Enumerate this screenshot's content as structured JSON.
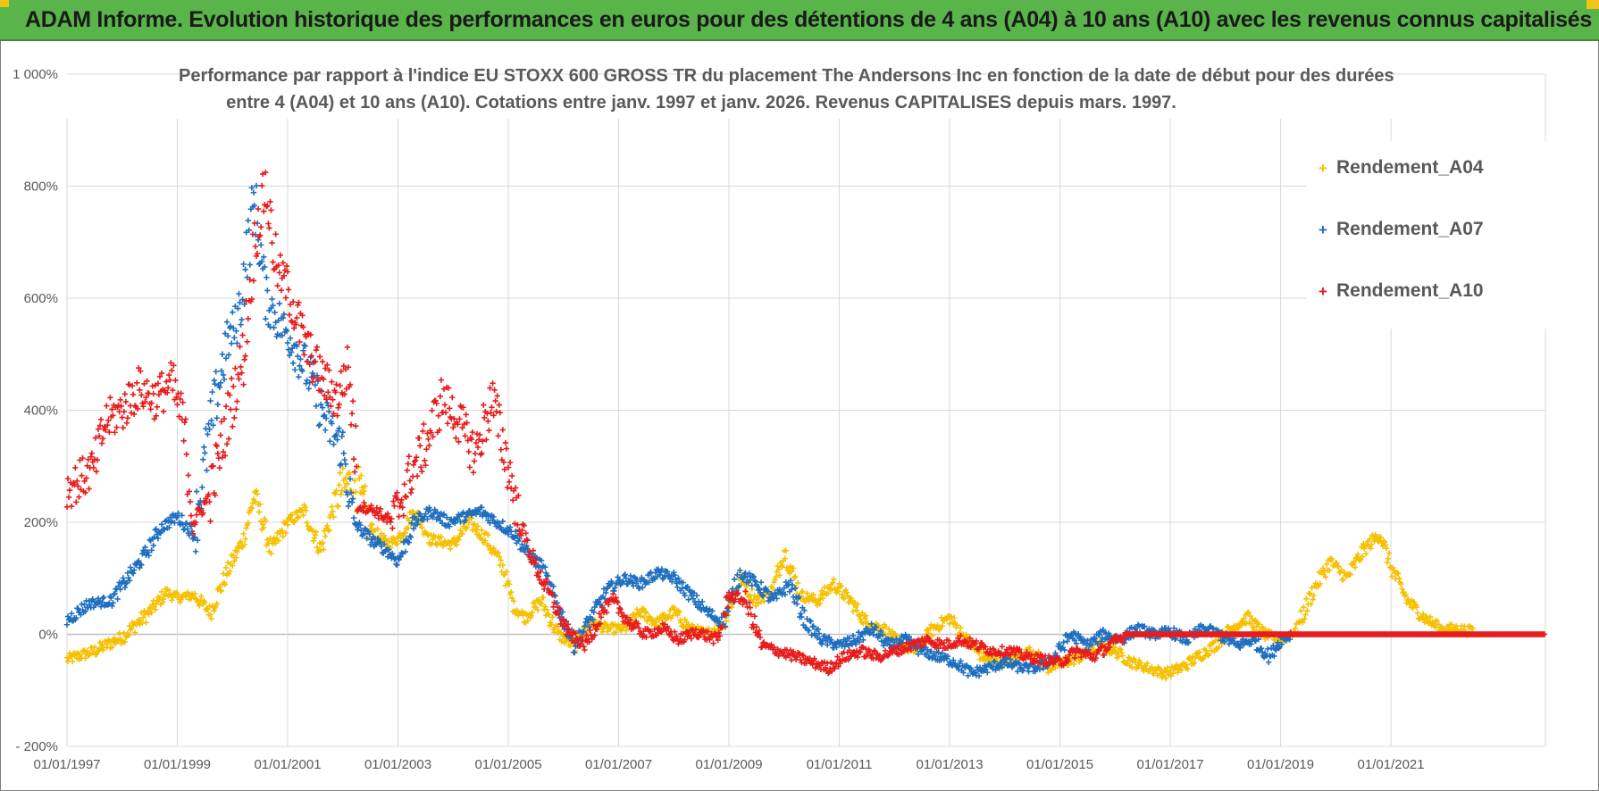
{
  "banner": {
    "title": "ADAM Informe. Evolution historique des performances en euros pour des détentions de 4 ans (A04) à 10 ans (A10) avec les revenus connus capitalisés"
  },
  "colors": {
    "banner_bg": "#59b54a",
    "banner_corner": "#f0c419",
    "A04": "#f5c000",
    "A07": "#1f6fc0",
    "A10": "#e81c1c"
  },
  "chart_data": {
    "type": "scatter",
    "title": "Performance par rapport à l'indice EU STOXX 600 GROSS TR  du placement The Andersons Inc en fonction de la date de début pour des durées entre 4 (A04) et 10 ans (A10). Cotations entre janv. 1997 et janv. 2026. Revenus CAPITALISES depuis mars. 1997.",
    "title_lines": [
      "Performance par rapport à l'indice EU STOXX 600 GROSS TR  du placement The Andersons Inc en fonction de la date de début pour des durées",
      "entre 4 (A04) et 10 ans (A10). Cotations entre janv. 1997 et janv. 2026. Revenus CAPITALISES depuis mars. 1997."
    ],
    "xlabel": "",
    "ylabel": "",
    "x_range": [
      1997.0,
      2023.8
    ],
    "ylim": [
      -200,
      1000
    ],
    "y_ticks": [
      -200,
      0,
      200,
      400,
      600,
      800,
      1000
    ],
    "y_tick_labels": [
      "- 200%",
      "0%",
      "200%",
      "400%",
      "600%",
      "800%",
      "1 000%"
    ],
    "x_ticks": [
      1997,
      1999,
      2001,
      2003,
      2005,
      2007,
      2009,
      2011,
      2013,
      2015,
      2017,
      2019,
      2021
    ],
    "x_tick_labels": [
      "01/01/1997",
      "01/01/1999",
      "01/01/2001",
      "01/01/2003",
      "01/01/2005",
      "01/01/2007",
      "01/01/2009",
      "01/01/2011",
      "01/01/2013",
      "01/01/2015",
      "01/01/2017",
      "01/01/2019",
      "01/01/2021"
    ],
    "grid": true,
    "legend_position": "top-right",
    "marker": "+",
    "series": [
      {
        "name": "Rendement_A04",
        "color": "#f5c000",
        "points": [
          [
            1997.0,
            -45
          ],
          [
            1997.5,
            -30
          ],
          [
            1998.0,
            -5
          ],
          [
            1998.5,
            40
          ],
          [
            1998.8,
            75
          ],
          [
            1999.0,
            65
          ],
          [
            1999.3,
            70
          ],
          [
            1999.6,
            40
          ],
          [
            1999.9,
            110
          ],
          [
            2000.2,
            170
          ],
          [
            2000.4,
            250
          ],
          [
            2000.7,
            150
          ],
          [
            2001.0,
            200
          ],
          [
            2001.3,
            220
          ],
          [
            2001.6,
            150
          ],
          [
            2001.9,
            250
          ],
          [
            2002.2,
            280
          ],
          [
            2002.5,
            190
          ],
          [
            2002.8,
            160
          ],
          [
            2003.0,
            170
          ],
          [
            2003.3,
            220
          ],
          [
            2003.6,
            170
          ],
          [
            2004.0,
            160
          ],
          [
            2004.3,
            200
          ],
          [
            2004.6,
            170
          ],
          [
            2004.9,
            120
          ],
          [
            2005.1,
            50
          ],
          [
            2005.3,
            30
          ],
          [
            2005.6,
            60
          ],
          [
            2005.9,
            0
          ],
          [
            2006.2,
            -20
          ],
          [
            2006.5,
            20
          ],
          [
            2006.8,
            10
          ],
          [
            2007.1,
            10
          ],
          [
            2007.4,
            40
          ],
          [
            2007.7,
            20
          ],
          [
            2008.0,
            40
          ],
          [
            2008.3,
            10
          ],
          [
            2008.6,
            0
          ],
          [
            2008.9,
            20
          ],
          [
            2009.2,
            100
          ],
          [
            2009.5,
            60
          ],
          [
            2009.8,
            80
          ],
          [
            2010.0,
            150
          ],
          [
            2010.3,
            70
          ],
          [
            2010.6,
            60
          ],
          [
            2010.9,
            90
          ],
          [
            2011.2,
            60
          ],
          [
            2011.5,
            20
          ],
          [
            2011.8,
            10
          ],
          [
            2012.1,
            -20
          ],
          [
            2012.4,
            -30
          ],
          [
            2012.7,
            10
          ],
          [
            2013.0,
            30
          ],
          [
            2013.3,
            -10
          ],
          [
            2013.6,
            -40
          ],
          [
            2013.9,
            -50
          ],
          [
            2014.2,
            -40
          ],
          [
            2014.5,
            -30
          ],
          [
            2014.8,
            -60
          ],
          [
            2015.1,
            -50
          ],
          [
            2015.4,
            -40
          ],
          [
            2015.7,
            -20
          ],
          [
            2016.0,
            -30
          ],
          [
            2016.3,
            -50
          ],
          [
            2016.6,
            -60
          ],
          [
            2016.9,
            -70
          ],
          [
            2017.2,
            -60
          ],
          [
            2017.5,
            -40
          ],
          [
            2017.8,
            -20
          ],
          [
            2018.1,
            10
          ],
          [
            2018.4,
            30
          ],
          [
            2018.7,
            0
          ],
          [
            2019.0,
            -10
          ],
          [
            2019.3,
            10
          ],
          [
            2019.6,
            80
          ],
          [
            2019.9,
            130
          ],
          [
            2020.2,
            100
          ],
          [
            2020.5,
            150
          ],
          [
            2020.8,
            180
          ],
          [
            2021.0,
            120
          ],
          [
            2021.3,
            60
          ],
          [
            2021.6,
            30
          ],
          [
            2021.9,
            10
          ],
          [
            2022.2,
            10
          ],
          [
            2022.5,
            5
          ]
        ]
      },
      {
        "name": "Rendement_A07",
        "color": "#1f6fc0",
        "points": [
          [
            1997.0,
            25
          ],
          [
            1997.4,
            55
          ],
          [
            1997.8,
            60
          ],
          [
            1998.1,
            100
          ],
          [
            1998.4,
            140
          ],
          [
            1998.7,
            190
          ],
          [
            1999.0,
            210
          ],
          [
            1999.3,
            180
          ],
          [
            1999.6,
            370
          ],
          [
            1999.9,
            520
          ],
          [
            2000.1,
            560
          ],
          [
            2000.4,
            780
          ],
          [
            2000.6,
            600
          ],
          [
            2000.9,
            550
          ],
          [
            2001.1,
            520
          ],
          [
            2001.4,
            460
          ],
          [
            2001.7,
            380
          ],
          [
            2002.0,
            330
          ],
          [
            2002.2,
            200
          ],
          [
            2002.5,
            170
          ],
          [
            2002.8,
            150
          ],
          [
            2003.0,
            130
          ],
          [
            2003.3,
            200
          ],
          [
            2003.6,
            220
          ],
          [
            2003.9,
            200
          ],
          [
            2004.2,
            210
          ],
          [
            2004.5,
            220
          ],
          [
            2004.8,
            200
          ],
          [
            2005.1,
            180
          ],
          [
            2005.3,
            150
          ],
          [
            2005.6,
            120
          ],
          [
            2005.9,
            50
          ],
          [
            2006.2,
            -20
          ],
          [
            2006.5,
            30
          ],
          [
            2006.8,
            80
          ],
          [
            2007.1,
            100
          ],
          [
            2007.4,
            90
          ],
          [
            2007.7,
            110
          ],
          [
            2008.0,
            100
          ],
          [
            2008.3,
            70
          ],
          [
            2008.6,
            40
          ],
          [
            2008.9,
            20
          ],
          [
            2009.2,
            110
          ],
          [
            2009.5,
            90
          ],
          [
            2009.8,
            60
          ],
          [
            2010.1,
            90
          ],
          [
            2010.4,
            20
          ],
          [
            2010.7,
            -10
          ],
          [
            2011.0,
            -20
          ],
          [
            2011.3,
            -10
          ],
          [
            2011.6,
            10
          ],
          [
            2011.9,
            -20
          ],
          [
            2012.2,
            -10
          ],
          [
            2012.5,
            -30
          ],
          [
            2012.8,
            -40
          ],
          [
            2013.1,
            -50
          ],
          [
            2013.4,
            -70
          ],
          [
            2013.7,
            -60
          ],
          [
            2014.0,
            -50
          ],
          [
            2014.3,
            -60
          ],
          [
            2014.6,
            -60
          ],
          [
            2014.9,
            -40
          ],
          [
            2015.2,
            0
          ],
          [
            2015.5,
            -20
          ],
          [
            2015.8,
            0
          ],
          [
            2016.1,
            -10
          ],
          [
            2016.4,
            10
          ],
          [
            2016.7,
            0
          ],
          [
            2017.0,
            5
          ],
          [
            2017.3,
            -10
          ],
          [
            2017.6,
            10
          ],
          [
            2017.9,
            0
          ],
          [
            2018.2,
            -20
          ],
          [
            2018.5,
            -10
          ],
          [
            2018.8,
            -40
          ],
          [
            2019.0,
            -10
          ],
          [
            2019.2,
            0
          ]
        ]
      },
      {
        "name": "Rendement_A10",
        "color": "#e81c1c",
        "points": [
          [
            1997.0,
            260
          ],
          [
            1997.3,
            280
          ],
          [
            1997.5,
            300
          ],
          [
            1997.7,
            380
          ],
          [
            1998.0,
            400
          ],
          [
            1998.3,
            440
          ],
          [
            1998.6,
            420
          ],
          [
            1998.9,
            450
          ],
          [
            1999.1,
            380
          ],
          [
            1999.3,
            200
          ],
          [
            1999.6,
            250
          ],
          [
            1999.9,
            380
          ],
          [
            2000.2,
            500
          ],
          [
            2000.4,
            700
          ],
          [
            2000.6,
            800
          ],
          [
            2000.8,
            650
          ],
          [
            2001.0,
            620
          ],
          [
            2001.3,
            520
          ],
          [
            2001.6,
            460
          ],
          [
            2001.9,
            420
          ],
          [
            2002.1,
            480
          ],
          [
            2002.3,
            230
          ],
          [
            2002.6,
            220
          ],
          [
            2002.9,
            200
          ],
          [
            2003.2,
            280
          ],
          [
            2003.5,
            340
          ],
          [
            2003.8,
            420
          ],
          [
            2004.1,
            380
          ],
          [
            2004.4,
            320
          ],
          [
            2004.7,
            420
          ],
          [
            2005.0,
            300
          ],
          [
            2005.2,
            200
          ],
          [
            2005.5,
            120
          ],
          [
            2005.8,
            60
          ],
          [
            2006.1,
            0
          ],
          [
            2006.4,
            -20
          ],
          [
            2006.7,
            40
          ],
          [
            2006.9,
            60
          ],
          [
            2007.2,
            20
          ],
          [
            2007.5,
            0
          ],
          [
            2007.8,
            10
          ],
          [
            2008.1,
            -10
          ],
          [
            2008.4,
            5
          ],
          [
            2008.8,
            -10
          ],
          [
            2009.0,
            70
          ],
          [
            2009.3,
            60
          ],
          [
            2009.6,
            -20
          ],
          [
            2009.9,
            -30
          ],
          [
            2010.2,
            -40
          ],
          [
            2010.5,
            -50
          ],
          [
            2010.8,
            -60
          ],
          [
            2011.1,
            -40
          ],
          [
            2011.4,
            -30
          ],
          [
            2011.7,
            -40
          ],
          [
            2012.0,
            -30
          ],
          [
            2012.3,
            -20
          ],
          [
            2012.6,
            -10
          ],
          [
            2012.9,
            -20
          ],
          [
            2013.2,
            -10
          ],
          [
            2013.5,
            -20
          ],
          [
            2013.8,
            -30
          ],
          [
            2014.1,
            -30
          ],
          [
            2014.4,
            -40
          ],
          [
            2014.7,
            -45
          ],
          [
            2015.0,
            -50
          ],
          [
            2015.3,
            -30
          ],
          [
            2015.6,
            -40
          ],
          [
            2015.9,
            -20
          ],
          [
            2016.2,
            0
          ],
          [
            2016.6,
            0
          ],
          [
            2017.0,
            0
          ],
          [
            2017.5,
            0
          ],
          [
            2018.0,
            0
          ],
          [
            2018.5,
            0
          ],
          [
            2019.0,
            0
          ],
          [
            2019.5,
            0
          ],
          [
            2020.0,
            0
          ],
          [
            2020.5,
            0
          ],
          [
            2021.0,
            0
          ],
          [
            2021.5,
            0
          ],
          [
            2022.0,
            0
          ],
          [
            2022.5,
            0
          ],
          [
            2023.0,
            0
          ],
          [
            2023.5,
            0
          ],
          [
            2023.8,
            0
          ]
        ]
      }
    ]
  },
  "legend": {
    "items": [
      {
        "label": "Rendement_A04",
        "marker": "+"
      },
      {
        "label": "Rendement_A07",
        "marker": "+"
      },
      {
        "label": "Rendement_A10",
        "marker": "+"
      }
    ]
  }
}
